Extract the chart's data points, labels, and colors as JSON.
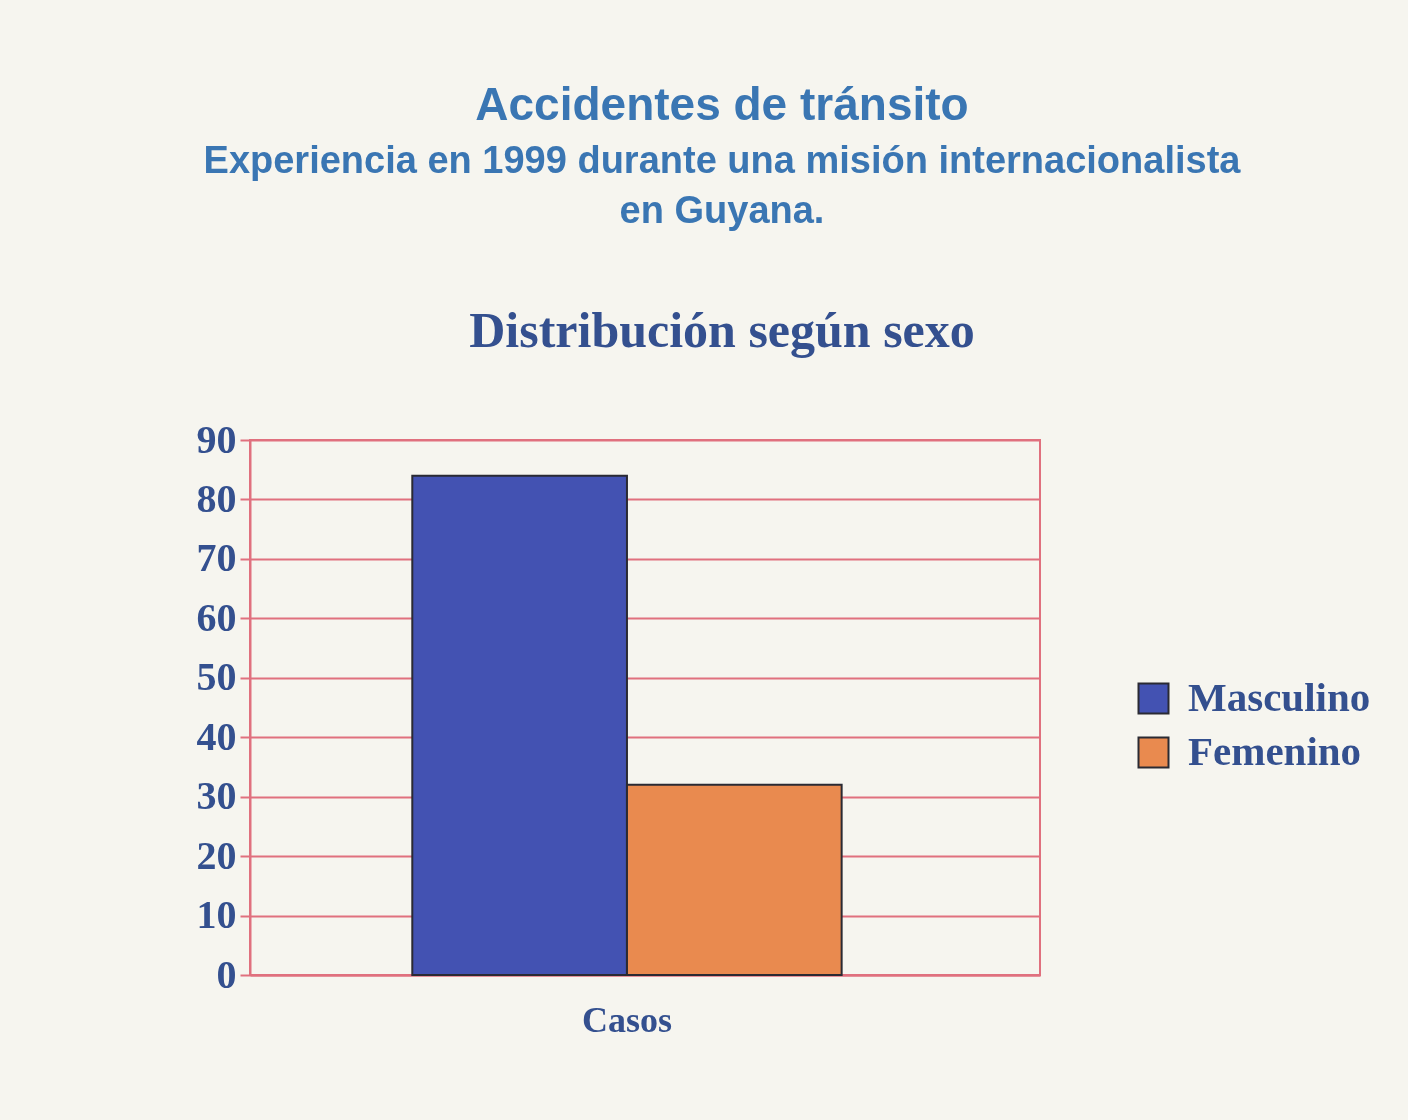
{
  "chart_data": {
    "type": "bar",
    "title": "Accidentes de tránsito",
    "subtitle": "Experiencia en 1999 durante una misión internacionalista en Guyana.",
    "annotations": [
      "Distribución según sexo"
    ],
    "categories": [
      "Casos"
    ],
    "series": [
      {
        "name": "Masculino",
        "color": "#4352b2",
        "values": [
          84
        ]
      },
      {
        "name": "Femenino",
        "color": "#e98a4f",
        "values": [
          32
        ]
      }
    ],
    "ylim": [
      0,
      90
    ],
    "yticks": [
      0,
      10,
      20,
      30,
      40,
      50,
      60,
      70,
      80,
      90
    ],
    "grid": "y",
    "legend": "right"
  }
}
